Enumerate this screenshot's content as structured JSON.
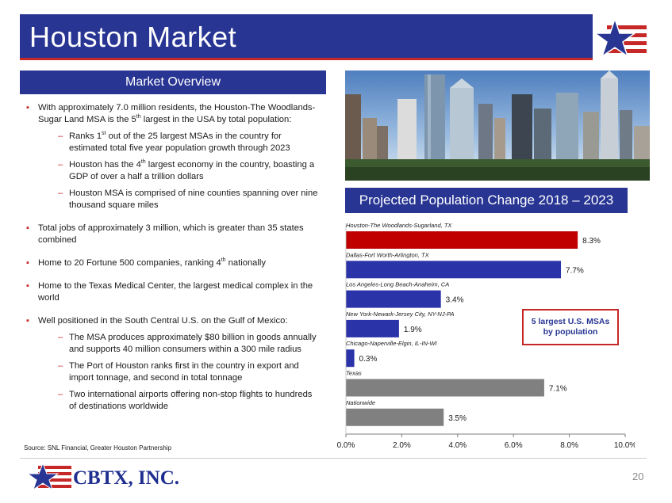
{
  "title": "Houston Market",
  "overview": {
    "header": "Market Overview",
    "bullet1": {
      "text_a": "With approximately 7.0 million residents, the Houston-The Woodlands-Sugar Land MSA is the 5",
      "sup": "th",
      "text_b": " largest in the USA by total population:"
    },
    "sub1": [
      {
        "a": "Ranks 1",
        "sup": "st",
        "b": " out of the 25 largest MSAs in the country for estimated total five year population growth through 2023"
      },
      {
        "a": "Houston has the 4",
        "sup": "th",
        "b": " largest economy in the country, boasting a GDP of over a half a trillion dollars"
      },
      {
        "a": "Houston MSA is comprised of nine counties spanning over nine thousand square miles",
        "sup": "",
        "b": ""
      }
    ],
    "bullet2": "Total jobs of approximately 3 million, which is greater than 35 states combined",
    "bullet3": {
      "a": "Home to 20 Fortune 500 companies, ranking 4",
      "sup": "th",
      "b": " nationally"
    },
    "bullet4": "Home to the Texas Medical Center, the largest medical complex in the world",
    "bullet5": "Well positioned in the South Central U.S. on the Gulf of Mexico:",
    "sub5": [
      "The MSA produces approximately $80 billion in goods annually and supports 40 million consumers within a 300 mile radius",
      "The Port of Houston ranks first in the country in export and import tonnage, and second in total tonnage",
      "Two international airports offering non-stop flights to hundreds of destinations worldwide"
    ]
  },
  "chart_header": "Projected Population Change 2018 – 2023",
  "callout": {
    "line1": "5 largest U.S. MSAs",
    "line2": "by population"
  },
  "source": "Source: SNL Financial, Greater Houston Partnership",
  "logo_text": "CBTX, INC.",
  "page_number": "20",
  "colors": {
    "navy": "#283593",
    "red": "#c62828",
    "bar_red": "#c00000",
    "bar_navy": "#2b33a8",
    "bar_gray": "#808080"
  },
  "chart_data": {
    "type": "bar",
    "orientation": "horizontal",
    "title": "Projected Population Change 2018 – 2023",
    "categories": [
      "Houston-The Woodlands-Sugarland, TX",
      "Dallas-Fort Worth-Arlington, TX",
      "Los Angeles-Long Beach-Anaheim, CA",
      "New York-Newark-Jersey City, NY-NJ-PA",
      "Chicago-Naperville-Elgin, IL-IN-WI",
      "Texas",
      "Nationwide"
    ],
    "values": [
      8.3,
      7.7,
      3.4,
      1.9,
      0.3,
      7.1,
      3.5
    ],
    "value_labels": [
      "8.3%",
      "7.7%",
      "3.4%",
      "1.9%",
      "0.3%",
      "7.1%",
      "3.5%"
    ],
    "bar_colors": [
      "#c00000",
      "#2b33a8",
      "#2b33a8",
      "#2b33a8",
      "#2b33a8",
      "#808080",
      "#808080"
    ],
    "xlim": [
      0,
      10
    ],
    "ticks": [
      0,
      2,
      4,
      6,
      8,
      10
    ],
    "tick_labels": [
      "0.0%",
      "2.0%",
      "4.0%",
      "6.0%",
      "8.0%",
      "10.0%"
    ],
    "xlabel": "",
    "ylabel": "",
    "grid": false
  }
}
